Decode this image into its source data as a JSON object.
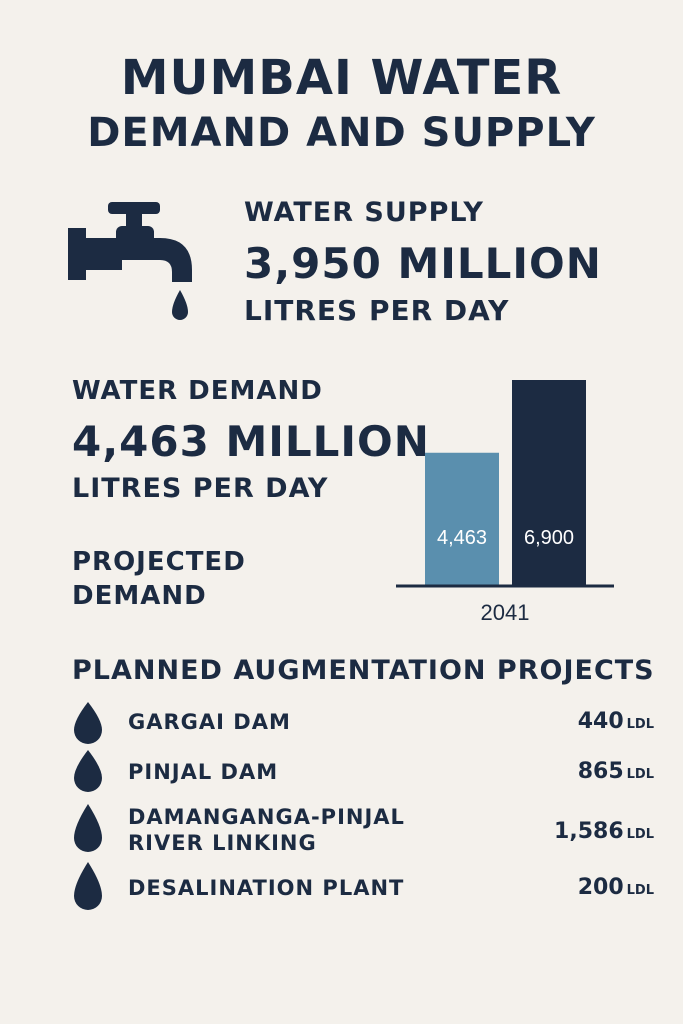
{
  "title_line1": "MUMBAI WATER",
  "title_line2": "DEMAND AND SUPPLY",
  "supply": {
    "label": "WATER SUPPLY",
    "value": "3,950 MILLION",
    "unit": "LITRES PER DAY",
    "icon": "faucet-icon"
  },
  "demand": {
    "label": "WATER DEMAND",
    "value": "4,463 MILLION",
    "unit": "LITRES PER DAY"
  },
  "projected_label_line1": "PROJECTED",
  "projected_label_line2": "DEMAND",
  "chart_data": {
    "type": "bar",
    "categories": [
      "",
      "2041"
    ],
    "values": [
      4463,
      6900
    ],
    "data_labels": [
      "4,463",
      "6,900"
    ],
    "x_label": "2041",
    "colors": [
      "#5a8fae",
      "#1c2b42"
    ],
    "ylim": [
      0,
      6900
    ]
  },
  "augmentation": {
    "heading": "PLANNED AUGMENTATION PROJECTS",
    "unit": "LDL",
    "items": [
      {
        "name": "GARGAI DAM",
        "value": "440"
      },
      {
        "name": "PINJAL DAM",
        "value": "865"
      },
      {
        "name_line1": "DAMANGANGA-PINJAL",
        "name_line2": "RIVER LINKING",
        "value": "1,586"
      },
      {
        "name": "DESALINATION PLANT",
        "value": "200"
      }
    ]
  },
  "colors": {
    "background": "#f4f1ec",
    "dark_navy": "#1c2b42",
    "steel_blue": "#5a8fae"
  }
}
